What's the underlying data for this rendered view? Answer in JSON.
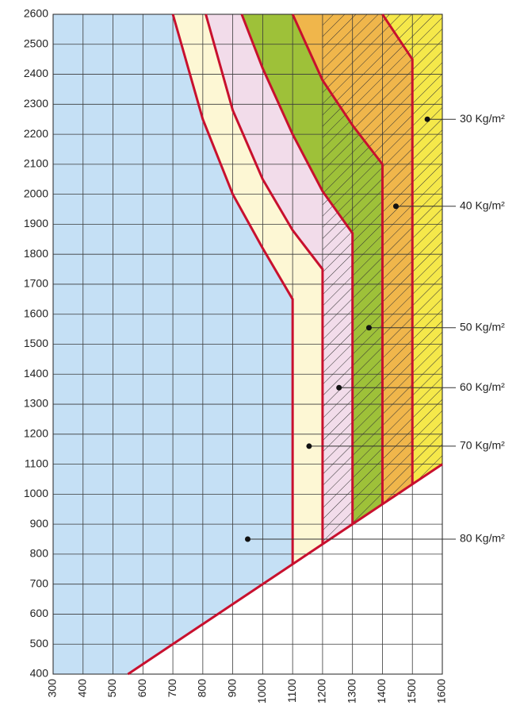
{
  "chart_data": {
    "type": "region",
    "xlim": [
      300,
      1600
    ],
    "ylim": [
      400,
      2600
    ],
    "xticks": [
      300,
      400,
      500,
      600,
      700,
      800,
      900,
      1000,
      1100,
      1200,
      1300,
      1400,
      1500,
      1600
    ],
    "yticks": [
      400,
      500,
      600,
      700,
      800,
      900,
      1000,
      1100,
      1200,
      1300,
      1400,
      1500,
      1600,
      1700,
      1800,
      1900,
      2000,
      2100,
      2200,
      2300,
      2400,
      2500,
      2600
    ],
    "grid": true,
    "line_color": "#c8102e",
    "region_colors": [
      "#c5e0f5",
      "#fdf7d4",
      "#f2dcea",
      "#9ec139",
      "#f0b64b",
      "#f5e84a"
    ],
    "hatch_from": 1200,
    "diagonal": {
      "x": [
        550,
        1600
      ],
      "y": [
        400,
        1100
      ]
    },
    "boundaries": [
      {
        "x": [
          700,
          800,
          900,
          1000,
          1100,
          1100
        ],
        "y": [
          2600,
          2250,
          2000,
          1820,
          1650,
          767
        ]
      },
      {
        "x": [
          810,
          900,
          1000,
          1100,
          1200,
          1200
        ],
        "y": [
          2600,
          2280,
          2050,
          1880,
          1750,
          833
        ]
      },
      {
        "x": [
          930,
          1000,
          1100,
          1200,
          1300,
          1300
        ],
        "y": [
          2600,
          2420,
          2200,
          2010,
          1870,
          900
        ]
      },
      {
        "x": [
          1100,
          1200,
          1300,
          1400,
          1400
        ],
        "y": [
          2600,
          2380,
          2230,
          2100,
          967
        ]
      },
      {
        "x": [
          1400,
          1500,
          1500
        ],
        "y": [
          2600,
          2450,
          1033
        ]
      }
    ],
    "annotations": [
      {
        "text": "30 Kg/m²",
        "x": 1550,
        "y": 2250
      },
      {
        "text": "40 Kg/m²",
        "x": 1445,
        "y": 1960
      },
      {
        "text": "50 Kg/m²",
        "x": 1355,
        "y": 1555
      },
      {
        "text": "60 Kg/m²",
        "x": 1255,
        "y": 1355
      },
      {
        "text": "70 Kg/m²",
        "x": 1155,
        "y": 1160
      },
      {
        "text": "80 Kg/m²",
        "x": 950,
        "y": 850
      }
    ]
  }
}
